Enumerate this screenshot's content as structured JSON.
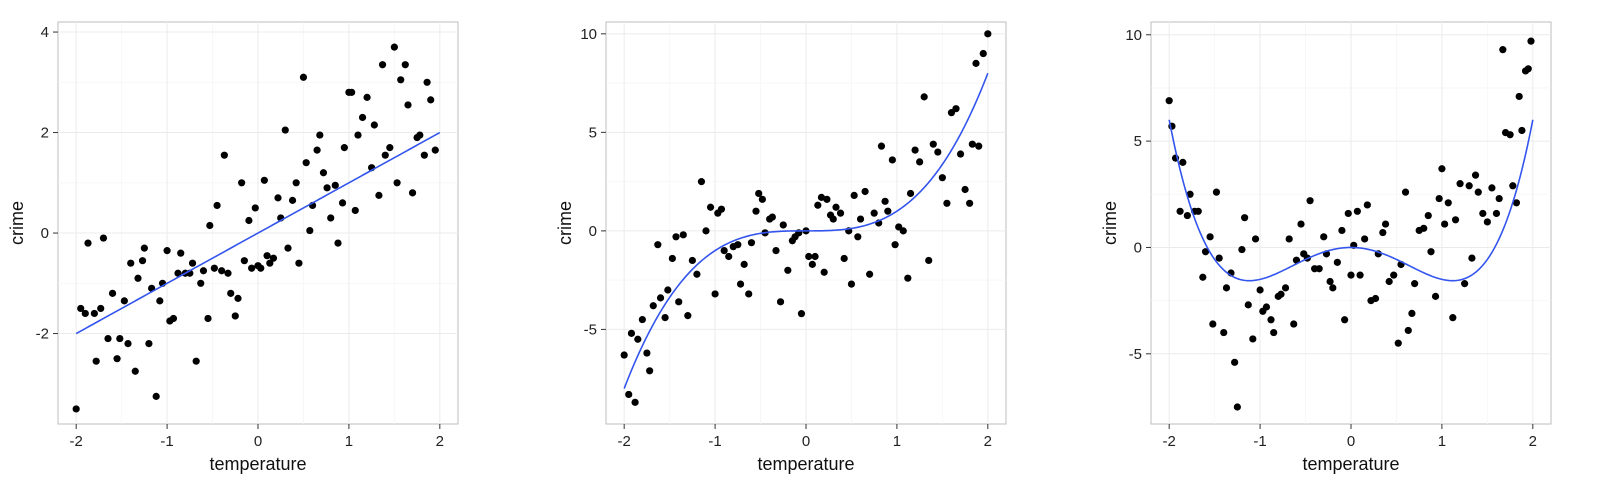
{
  "chart_data": [
    {
      "type": "scatter",
      "xlabel": "temperature",
      "ylabel": "crime",
      "xlim": [
        -2.2,
        2.2
      ],
      "ylim": [
        -3.8,
        4.2
      ],
      "x_ticks": [
        -2,
        -1,
        0,
        1,
        2
      ],
      "y_ticks": [
        -2,
        0,
        2,
        4
      ],
      "grid": true,
      "fit_line": {
        "type": "linear",
        "x_range": [
          -2,
          2
        ],
        "coefficients": [
          0,
          1
        ]
      },
      "points": [
        [
          -2.0,
          -3.5
        ],
        [
          -1.95,
          -1.5
        ],
        [
          -1.9,
          -1.6
        ],
        [
          -1.87,
          -0.2
        ],
        [
          -1.8,
          -1.6
        ],
        [
          -1.78,
          -2.55
        ],
        [
          -1.73,
          -1.5
        ],
        [
          -1.7,
          -0.1
        ],
        [
          -1.65,
          -2.1
        ],
        [
          -1.6,
          -1.2
        ],
        [
          -1.55,
          -2.5
        ],
        [
          -1.52,
          -2.1
        ],
        [
          -1.47,
          -1.35
        ],
        [
          -1.43,
          -2.2
        ],
        [
          -1.4,
          -0.6
        ],
        [
          -1.35,
          -2.75
        ],
        [
          -1.32,
          -0.9
        ],
        [
          -1.27,
          -0.55
        ],
        [
          -1.25,
          -0.3
        ],
        [
          -1.2,
          -2.2
        ],
        [
          -1.17,
          -1.1
        ],
        [
          -1.12,
          -3.25
        ],
        [
          -1.08,
          -1.35
        ],
        [
          -1.05,
          -1.0
        ],
        [
          -1.0,
          -0.35
        ],
        [
          -0.97,
          -1.75
        ],
        [
          -0.93,
          -1.7
        ],
        [
          -0.88,
          -0.8
        ],
        [
          -0.85,
          -0.4
        ],
        [
          -0.8,
          -0.8
        ],
        [
          -0.75,
          -0.8
        ],
        [
          -0.72,
          -0.6
        ],
        [
          -0.68,
          -2.55
        ],
        [
          -0.63,
          -1.0
        ],
        [
          -0.6,
          -0.75
        ],
        [
          -0.55,
          -1.7
        ],
        [
          -0.53,
          0.15
        ],
        [
          -0.48,
          -0.7
        ],
        [
          -0.45,
          0.55
        ],
        [
          -0.4,
          -0.75
        ],
        [
          -0.37,
          1.55
        ],
        [
          -0.33,
          -0.8
        ],
        [
          -0.3,
          -1.2
        ],
        [
          -0.25,
          -1.65
        ],
        [
          -0.22,
          -1.3
        ],
        [
          -0.18,
          1.0
        ],
        [
          -0.15,
          -0.55
        ],
        [
          -0.1,
          0.25
        ],
        [
          -0.07,
          -0.7
        ],
        [
          -0.03,
          0.5
        ],
        [
          0.0,
          -0.65
        ],
        [
          0.03,
          -0.7
        ],
        [
          0.07,
          1.05
        ],
        [
          0.1,
          -0.45
        ],
        [
          0.13,
          -0.6
        ],
        [
          0.17,
          -0.5
        ],
        [
          0.22,
          0.7
        ],
        [
          0.25,
          0.3
        ],
        [
          0.3,
          2.05
        ],
        [
          0.33,
          -0.3
        ],
        [
          0.38,
          0.65
        ],
        [
          0.42,
          1.0
        ],
        [
          0.45,
          -0.6
        ],
        [
          0.5,
          3.1
        ],
        [
          0.53,
          1.4
        ],
        [
          0.57,
          0.05
        ],
        [
          0.6,
          0.55
        ],
        [
          0.65,
          1.65
        ],
        [
          0.68,
          1.95
        ],
        [
          0.72,
          1.2
        ],
        [
          0.76,
          0.9
        ],
        [
          0.8,
          0.3
        ],
        [
          0.85,
          0.95
        ],
        [
          0.88,
          -0.2
        ],
        [
          0.93,
          0.6
        ],
        [
          0.95,
          1.7
        ],
        [
          1.0,
          2.8
        ],
        [
          1.03,
          2.8
        ],
        [
          1.07,
          0.45
        ],
        [
          1.1,
          1.95
        ],
        [
          1.15,
          2.3
        ],
        [
          1.2,
          2.7
        ],
        [
          1.25,
          1.3
        ],
        [
          1.28,
          2.15
        ],
        [
          1.33,
          0.75
        ],
        [
          1.37,
          3.35
        ],
        [
          1.4,
          1.55
        ],
        [
          1.45,
          1.7
        ],
        [
          1.5,
          3.7
        ],
        [
          1.53,
          1.0
        ],
        [
          1.57,
          3.05
        ],
        [
          1.62,
          3.35
        ],
        [
          1.65,
          2.55
        ],
        [
          1.7,
          0.8
        ],
        [
          1.75,
          1.9
        ],
        [
          1.78,
          1.95
        ],
        [
          1.83,
          1.55
        ],
        [
          1.86,
          3.0
        ],
        [
          1.9,
          2.65
        ],
        [
          1.95,
          1.65
        ]
      ]
    },
    {
      "type": "scatter",
      "xlabel": "temperature",
      "ylabel": "crime",
      "xlim": [
        -2.2,
        2.2
      ],
      "ylim": [
        -9.8,
        10.6
      ],
      "x_ticks": [
        -2,
        -1,
        0,
        1,
        2
      ],
      "y_ticks": [
        -5,
        0,
        5,
        10
      ],
      "grid": true,
      "fit_line": {
        "type": "polynomial",
        "x_range": [
          -2,
          2
        ],
        "coefficients": [
          0,
          0,
          0,
          1
        ]
      },
      "points": [
        [
          -2.0,
          -6.3
        ],
        [
          -1.95,
          -8.3
        ],
        [
          -1.92,
          -5.2
        ],
        [
          -1.88,
          -8.7
        ],
        [
          -1.85,
          -5.5
        ],
        [
          -1.8,
          -4.5
        ],
        [
          -1.75,
          -6.2
        ],
        [
          -1.72,
          -7.1
        ],
        [
          -1.68,
          -3.8
        ],
        [
          -1.63,
          -0.7
        ],
        [
          -1.6,
          -3.4
        ],
        [
          -1.55,
          -4.4
        ],
        [
          -1.52,
          -3.0
        ],
        [
          -1.47,
          -1.4
        ],
        [
          -1.43,
          -0.3
        ],
        [
          -1.4,
          -3.6
        ],
        [
          -1.35,
          -0.2
        ],
        [
          -1.3,
          -4.3
        ],
        [
          -1.25,
          -1.5
        ],
        [
          -1.2,
          -2.2
        ],
        [
          -1.15,
          2.5
        ],
        [
          -1.1,
          0.0
        ],
        [
          -1.05,
          1.2
        ],
        [
          -1.0,
          -3.2
        ],
        [
          -0.97,
          0.9
        ],
        [
          -0.93,
          1.1
        ],
        [
          -0.9,
          -1.0
        ],
        [
          -0.85,
          -1.3
        ],
        [
          -0.8,
          -0.8
        ],
        [
          -0.75,
          -0.7
        ],
        [
          -0.72,
          -2.7
        ],
        [
          -0.68,
          -1.7
        ],
        [
          -0.63,
          -3.2
        ],
        [
          -0.6,
          -0.6
        ],
        [
          -0.55,
          1.0
        ],
        [
          -0.52,
          1.9
        ],
        [
          -0.48,
          1.6
        ],
        [
          -0.45,
          -0.1
        ],
        [
          -0.4,
          0.6
        ],
        [
          -0.37,
          0.7
        ],
        [
          -0.33,
          -1.0
        ],
        [
          -0.28,
          -3.6
        ],
        [
          -0.25,
          0.3
        ],
        [
          -0.2,
          -2.0
        ],
        [
          -0.15,
          -0.5
        ],
        [
          -0.12,
          -0.3
        ],
        [
          -0.08,
          -0.1
        ],
        [
          -0.05,
          -4.2
        ],
        [
          0.0,
          0.0
        ],
        [
          0.03,
          -1.3
        ],
        [
          0.07,
          -1.7
        ],
        [
          0.1,
          -1.3
        ],
        [
          0.13,
          1.3
        ],
        [
          0.17,
          1.7
        ],
        [
          0.2,
          -2.1
        ],
        [
          0.23,
          1.6
        ],
        [
          0.27,
          0.8
        ],
        [
          0.3,
          0.6
        ],
        [
          0.33,
          1.2
        ],
        [
          0.38,
          0.9
        ],
        [
          0.42,
          -1.4
        ],
        [
          0.47,
          0.0
        ],
        [
          0.5,
          -2.7
        ],
        [
          0.53,
          1.8
        ],
        [
          0.57,
          -0.3
        ],
        [
          0.6,
          0.6
        ],
        [
          0.65,
          2.0
        ],
        [
          0.7,
          -2.2
        ],
        [
          0.75,
          0.9
        ],
        [
          0.8,
          0.4
        ],
        [
          0.83,
          4.3
        ],
        [
          0.87,
          1.5
        ],
        [
          0.9,
          1.0
        ],
        [
          0.95,
          3.6
        ],
        [
          0.98,
          -0.7
        ],
        [
          1.02,
          0.2
        ],
        [
          1.07,
          0.0
        ],
        [
          1.12,
          -2.4
        ],
        [
          1.15,
          1.9
        ],
        [
          1.2,
          4.1
        ],
        [
          1.25,
          3.5
        ],
        [
          1.3,
          6.8
        ],
        [
          1.35,
          -1.5
        ],
        [
          1.4,
          4.4
        ],
        [
          1.45,
          4.0
        ],
        [
          1.5,
          2.7
        ],
        [
          1.55,
          1.4
        ],
        [
          1.6,
          6.0
        ],
        [
          1.65,
          6.2
        ],
        [
          1.7,
          3.9
        ],
        [
          1.75,
          2.1
        ],
        [
          1.8,
          1.4
        ],
        [
          1.83,
          4.4
        ],
        [
          1.87,
          8.5
        ],
        [
          1.9,
          4.3
        ],
        [
          1.95,
          9.0
        ],
        [
          2.0,
          10.0
        ]
      ]
    },
    {
      "type": "scatter",
      "xlabel": "temperature",
      "ylabel": "crime",
      "xlim": [
        -2.2,
        2.2
      ],
      "ylim": [
        -8.3,
        10.6
      ],
      "x_ticks": [
        -2,
        -1,
        0,
        1,
        2
      ],
      "y_ticks": [
        -5,
        0,
        5,
        10
      ],
      "grid": true,
      "fit_line": {
        "type": "polynomial",
        "x_range": [
          -2,
          2
        ],
        "coefficients": [
          0,
          0,
          -2.5,
          0,
          1
        ]
      },
      "points": [
        [
          -2.0,
          6.9
        ],
        [
          -1.97,
          5.7
        ],
        [
          -1.93,
          4.2
        ],
        [
          -1.88,
          1.7
        ],
        [
          -1.85,
          4.0
        ],
        [
          -1.8,
          1.5
        ],
        [
          -1.77,
          2.5
        ],
        [
          -1.72,
          1.7
        ],
        [
          -1.68,
          1.7
        ],
        [
          -1.63,
          -1.4
        ],
        [
          -1.6,
          -0.2
        ],
        [
          -1.55,
          0.5
        ],
        [
          -1.52,
          -3.6
        ],
        [
          -1.48,
          2.6
        ],
        [
          -1.45,
          -0.5
        ],
        [
          -1.4,
          -4.0
        ],
        [
          -1.37,
          -1.9
        ],
        [
          -1.32,
          -1.2
        ],
        [
          -1.28,
          -5.4
        ],
        [
          -1.25,
          -7.5
        ],
        [
          -1.2,
          -0.1
        ],
        [
          -1.17,
          1.4
        ],
        [
          -1.13,
          -2.7
        ],
        [
          -1.08,
          -4.3
        ],
        [
          -1.05,
          0.4
        ],
        [
          -1.0,
          -2.0
        ],
        [
          -0.97,
          -3.0
        ],
        [
          -0.93,
          -2.8
        ],
        [
          -0.88,
          -3.4
        ],
        [
          -0.85,
          -4.0
        ],
        [
          -0.8,
          -2.3
        ],
        [
          -0.77,
          -2.2
        ],
        [
          -0.72,
          -1.9
        ],
        [
          -0.68,
          0.4
        ],
        [
          -0.63,
          -3.6
        ],
        [
          -0.6,
          -0.6
        ],
        [
          -0.55,
          1.1
        ],
        [
          -0.52,
          -0.3
        ],
        [
          -0.48,
          -0.5
        ],
        [
          -0.45,
          2.2
        ],
        [
          -0.4,
          -1.0
        ],
        [
          -0.35,
          -1.0
        ],
        [
          -0.3,
          0.5
        ],
        [
          -0.27,
          -0.3
        ],
        [
          -0.23,
          -1.6
        ],
        [
          -0.2,
          -1.9
        ],
        [
          -0.15,
          -0.7
        ],
        [
          -0.1,
          0.8
        ],
        [
          -0.07,
          -3.4
        ],
        [
          -0.03,
          1.6
        ],
        [
          0.0,
          -1.3
        ],
        [
          0.03,
          0.1
        ],
        [
          0.07,
          1.7
        ],
        [
          0.1,
          -1.3
        ],
        [
          0.15,
          0.4
        ],
        [
          0.18,
          2.0
        ],
        [
          0.22,
          -2.5
        ],
        [
          0.27,
          -2.4
        ],
        [
          0.3,
          -0.3
        ],
        [
          0.35,
          0.7
        ],
        [
          0.38,
          1.1
        ],
        [
          0.42,
          -1.6
        ],
        [
          0.47,
          -1.3
        ],
        [
          0.52,
          -4.5
        ],
        [
          0.55,
          -0.8
        ],
        [
          0.6,
          2.6
        ],
        [
          0.63,
          -3.9
        ],
        [
          0.67,
          -3.1
        ],
        [
          0.7,
          -1.7
        ],
        [
          0.75,
          0.8
        ],
        [
          0.8,
          0.9
        ],
        [
          0.85,
          1.5
        ],
        [
          0.88,
          -0.2
        ],
        [
          0.93,
          -2.3
        ],
        [
          0.97,
          2.3
        ],
        [
          1.0,
          3.7
        ],
        [
          1.03,
          1.1
        ],
        [
          1.07,
          2.1
        ],
        [
          1.12,
          -3.3
        ],
        [
          1.15,
          1.3
        ],
        [
          1.2,
          3.0
        ],
        [
          1.25,
          -1.7
        ],
        [
          1.3,
          2.9
        ],
        [
          1.33,
          -0.5
        ],
        [
          1.37,
          3.4
        ],
        [
          1.4,
          2.6
        ],
        [
          1.45,
          1.6
        ],
        [
          1.5,
          1.2
        ],
        [
          1.55,
          2.8
        ],
        [
          1.6,
          1.6
        ],
        [
          1.63,
          2.3
        ],
        [
          1.67,
          9.3
        ],
        [
          1.7,
          5.4
        ],
        [
          1.75,
          5.3
        ],
        [
          1.78,
          2.9
        ],
        [
          1.82,
          2.1
        ],
        [
          1.85,
          7.1
        ],
        [
          1.88,
          5.5
        ],
        [
          1.92,
          8.3
        ],
        [
          1.95,
          8.4
        ],
        [
          1.98,
          9.7
        ]
      ]
    }
  ],
  "style": {
    "point_color": "#000000",
    "fit_color": "#3355ee",
    "panel_border": "#bdbdbd",
    "grid_color": "#ebebeb"
  }
}
